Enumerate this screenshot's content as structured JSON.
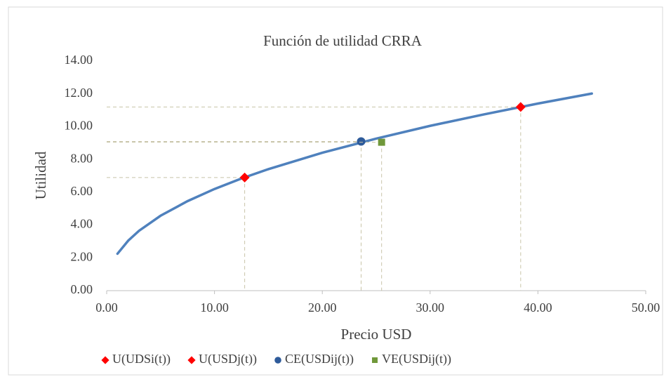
{
  "chart_data": {
    "type": "scatter",
    "title": "Función de utilidad CRRA",
    "x_label": "Precio USD",
    "y_label": "Utilidad",
    "xlim": [
      0,
      50
    ],
    "ylim": [
      0,
      14
    ],
    "xticks": [
      {
        "value": 0,
        "label": "0.00"
      },
      {
        "value": 10,
        "label": "10.00"
      },
      {
        "value": 20,
        "label": "20.00"
      },
      {
        "value": 30,
        "label": "30.00"
      },
      {
        "value": 40,
        "label": "40.00"
      },
      {
        "value": 50,
        "label": "50.00"
      }
    ],
    "yticks": [
      {
        "value": 0,
        "label": "0.00"
      },
      {
        "value": 2,
        "label": "2.00"
      },
      {
        "value": 4,
        "label": "4.00"
      },
      {
        "value": 6,
        "label": "6.00"
      },
      {
        "value": 8,
        "label": "8.00"
      },
      {
        "value": 10,
        "label": "10.00"
      },
      {
        "value": 12,
        "label": "12.00"
      },
      {
        "value": 14,
        "label": "14.00"
      }
    ],
    "droplines": true,
    "legend": "bottom",
    "curve": {
      "color": "#4f81bd",
      "x": [
        1,
        2,
        3,
        5,
        7.5,
        10,
        12.5,
        15,
        20,
        25,
        30,
        35,
        40,
        45
      ],
      "values": [
        2.25,
        3.05,
        3.65,
        4.57,
        5.46,
        6.2,
        6.84,
        7.41,
        8.41,
        9.27,
        10.05,
        10.75,
        11.41,
        12.02
      ]
    },
    "series": [
      {
        "name": "U(UDSi(t))",
        "color": "#ff0000",
        "marker": "diamond",
        "x": [
          12.8
        ],
        "values": [
          6.9
        ]
      },
      {
        "name": "U(USDj(t))",
        "color": "#ff0000",
        "marker": "diamond",
        "x": [
          38.4
        ],
        "values": [
          11.2
        ]
      },
      {
        "name": "CE(USDij(t))",
        "color": "#2e5b9a",
        "marker": "circle",
        "x": [
          23.6
        ],
        "values": [
          9.1
        ]
      },
      {
        "name": "VE(USDij(t))",
        "color": "#70983a",
        "marker": "square",
        "x": [
          25.5
        ],
        "values": [
          9.05
        ]
      }
    ]
  }
}
